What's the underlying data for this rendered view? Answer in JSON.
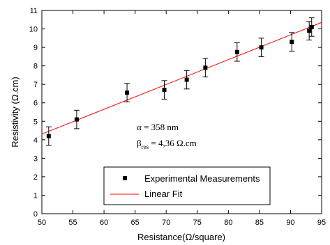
{
  "chart_data": {
    "type": "scatter",
    "xlabel": "Resistance(Ω/square)",
    "ylabel": "Resistivity (Ω.cm)",
    "xlim": [
      50,
      95
    ],
    "ylim": [
      0,
      11
    ],
    "x_ticks": [
      50,
      55,
      60,
      65,
      70,
      75,
      80,
      85,
      90,
      95
    ],
    "y_ticks": [
      0,
      1,
      2,
      3,
      4,
      5,
      6,
      7,
      8,
      9,
      10,
      11
    ],
    "grid": false,
    "legend_position": "bottom-center",
    "series": [
      {
        "name": "Experimental Measurements",
        "kind": "points-with-error-bars",
        "color": "#000000",
        "x": [
          51.1,
          55.6,
          63.7,
          69.7,
          73.3,
          76.3,
          81.4,
          85.3,
          90.2,
          93.0,
          93.4
        ],
        "y": [
          4.2,
          5.1,
          6.55,
          6.7,
          7.25,
          7.9,
          8.75,
          9.0,
          9.3,
          9.9,
          10.1
        ],
        "error": [
          0.5,
          0.5,
          0.5,
          0.5,
          0.5,
          0.5,
          0.5,
          0.5,
          0.5,
          0.5,
          0.5
        ]
      },
      {
        "name": "Linear Fit",
        "kind": "line",
        "color": "#ff0000",
        "x": [
          50,
          95
        ],
        "y": [
          4.31,
          10.35
        ]
      }
    ],
    "annotations": [
      {
        "lead": "α",
        "sub": "",
        "value": " = 358 nm"
      },
      {
        "lead": "β",
        "sub": "res",
        "value": " = 4,36 Ω.cm"
      }
    ]
  }
}
